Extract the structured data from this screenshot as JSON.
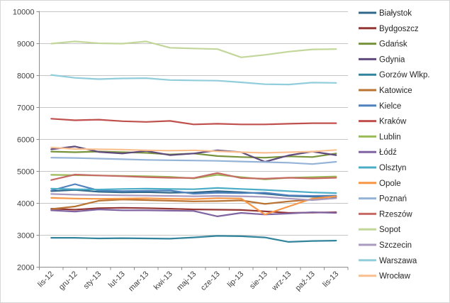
{
  "chart_data": {
    "type": "line",
    "title": "",
    "xlabel": "",
    "ylabel": "",
    "ylim": [
      2000,
      10000
    ],
    "ytick_step": 1000,
    "grid": true,
    "legend_position": "right",
    "x_categories": [
      "lis-12",
      "gru-12",
      "sty-13",
      "lut-13",
      "mar-13",
      "kwi-13",
      "maj-13",
      "cze-13",
      "lip-13",
      "sie-13",
      "wrz-13",
      "paź-13",
      "lis-13"
    ],
    "series": [
      {
        "name": "Białystok",
        "color": "#31688A",
        "values": [
          4380,
          4420,
          4360,
          4340,
          4350,
          4330,
          4340,
          4380,
          4350,
          4300,
          4230,
          4210,
          4200
        ]
      },
      {
        "name": "Bydgoszcz",
        "color": "#943634",
        "values": [
          3830,
          3800,
          3850,
          3860,
          3850,
          3830,
          3810,
          3800,
          3790,
          3750,
          3700,
          3710,
          3720
        ]
      },
      {
        "name": "Gdańsk",
        "color": "#77933C",
        "values": [
          5620,
          5600,
          5620,
          5600,
          5580,
          5530,
          5560,
          5480,
          5450,
          5430,
          5470,
          5450,
          5560
        ]
      },
      {
        "name": "Gdynia",
        "color": "#604A7B",
        "values": [
          5690,
          5780,
          5610,
          5560,
          5640,
          5510,
          5560,
          5660,
          5600,
          5300,
          5500,
          5620,
          5510
        ]
      },
      {
        "name": "Gorzów Wlkp.",
        "color": "#31849B",
        "values": [
          2920,
          2920,
          2900,
          2910,
          2900,
          2890,
          2930,
          2980,
          2970,
          2930,
          2790,
          2820,
          2830
        ]
      },
      {
        "name": "Katowice",
        "color": "#B97333",
        "values": [
          3820,
          3900,
          4080,
          4120,
          4100,
          4080,
          4060,
          4070,
          4090,
          3980,
          4060,
          4120,
          4160
        ]
      },
      {
        "name": "Kielce",
        "color": "#4F81BD",
        "values": [
          4400,
          4600,
          4400,
          4380,
          4390,
          4400,
          4300,
          4330,
          4320,
          4330,
          4250,
          4230,
          4240
        ]
      },
      {
        "name": "Kraków",
        "color": "#C0504D",
        "values": [
          6650,
          6600,
          6620,
          6570,
          6550,
          6580,
          6470,
          6490,
          6470,
          6470,
          6490,
          6510,
          6510
        ]
      },
      {
        "name": "Lublin",
        "color": "#9BBB59",
        "values": [
          4890,
          4880,
          4870,
          4860,
          4850,
          4830,
          4780,
          4890,
          4820,
          4750,
          4800,
          4820,
          4840
        ]
      },
      {
        "name": "Łódź",
        "color": "#8064A2",
        "values": [
          3780,
          3740,
          3810,
          3780,
          3780,
          3770,
          3760,
          3590,
          3700,
          3650,
          3680,
          3720,
          3700
        ]
      },
      {
        "name": "Olsztyn",
        "color": "#4BACC6",
        "values": [
          4460,
          4440,
          4430,
          4450,
          4460,
          4450,
          4440,
          4480,
          4450,
          4420,
          4380,
          4340,
          4320
        ]
      },
      {
        "name": "Opole",
        "color": "#F79646",
        "values": [
          4170,
          4150,
          4140,
          4150,
          4160,
          4140,
          4130,
          4160,
          4150,
          3650,
          3900,
          4150,
          4220
        ]
      },
      {
        "name": "Poznań",
        "color": "#95B3D7",
        "values": [
          5430,
          5420,
          5400,
          5380,
          5360,
          5350,
          5340,
          5330,
          5310,
          5290,
          5270,
          5230,
          5300
        ]
      },
      {
        "name": "Rzeszów",
        "color": "#C66A64",
        "values": [
          4730,
          4900,
          4870,
          4850,
          4820,
          4800,
          4790,
          4950,
          4790,
          4770,
          4800,
          4780,
          4800
        ]
      },
      {
        "name": "Sopot",
        "color": "#C3D69B",
        "values": [
          9000,
          9070,
          9010,
          9000,
          9070,
          8870,
          8850,
          8830,
          8570,
          8650,
          8750,
          8820,
          8830
        ]
      },
      {
        "name": "Szczecin",
        "color": "#A99BC0",
        "values": [
          4290,
          4270,
          4260,
          4250,
          4240,
          4230,
          4220,
          4230,
          4220,
          4200,
          4150,
          4100,
          4160
        ]
      },
      {
        "name": "Warszawa",
        "color": "#92CDDC",
        "values": [
          8020,
          7930,
          7890,
          7910,
          7920,
          7860,
          7850,
          7840,
          7790,
          7730,
          7720,
          7780,
          7770
        ]
      },
      {
        "name": "Wrocław",
        "color": "#FAC090",
        "values": [
          5750,
          5700,
          5690,
          5680,
          5660,
          5650,
          5660,
          5630,
          5600,
          5580,
          5600,
          5620,
          5670
        ]
      }
    ],
    "style": {
      "gridline_color": "#C6C6C6",
      "axis_color": "#8C8C8C",
      "label_color": "#404040",
      "background": "#FFFFFF"
    }
  }
}
